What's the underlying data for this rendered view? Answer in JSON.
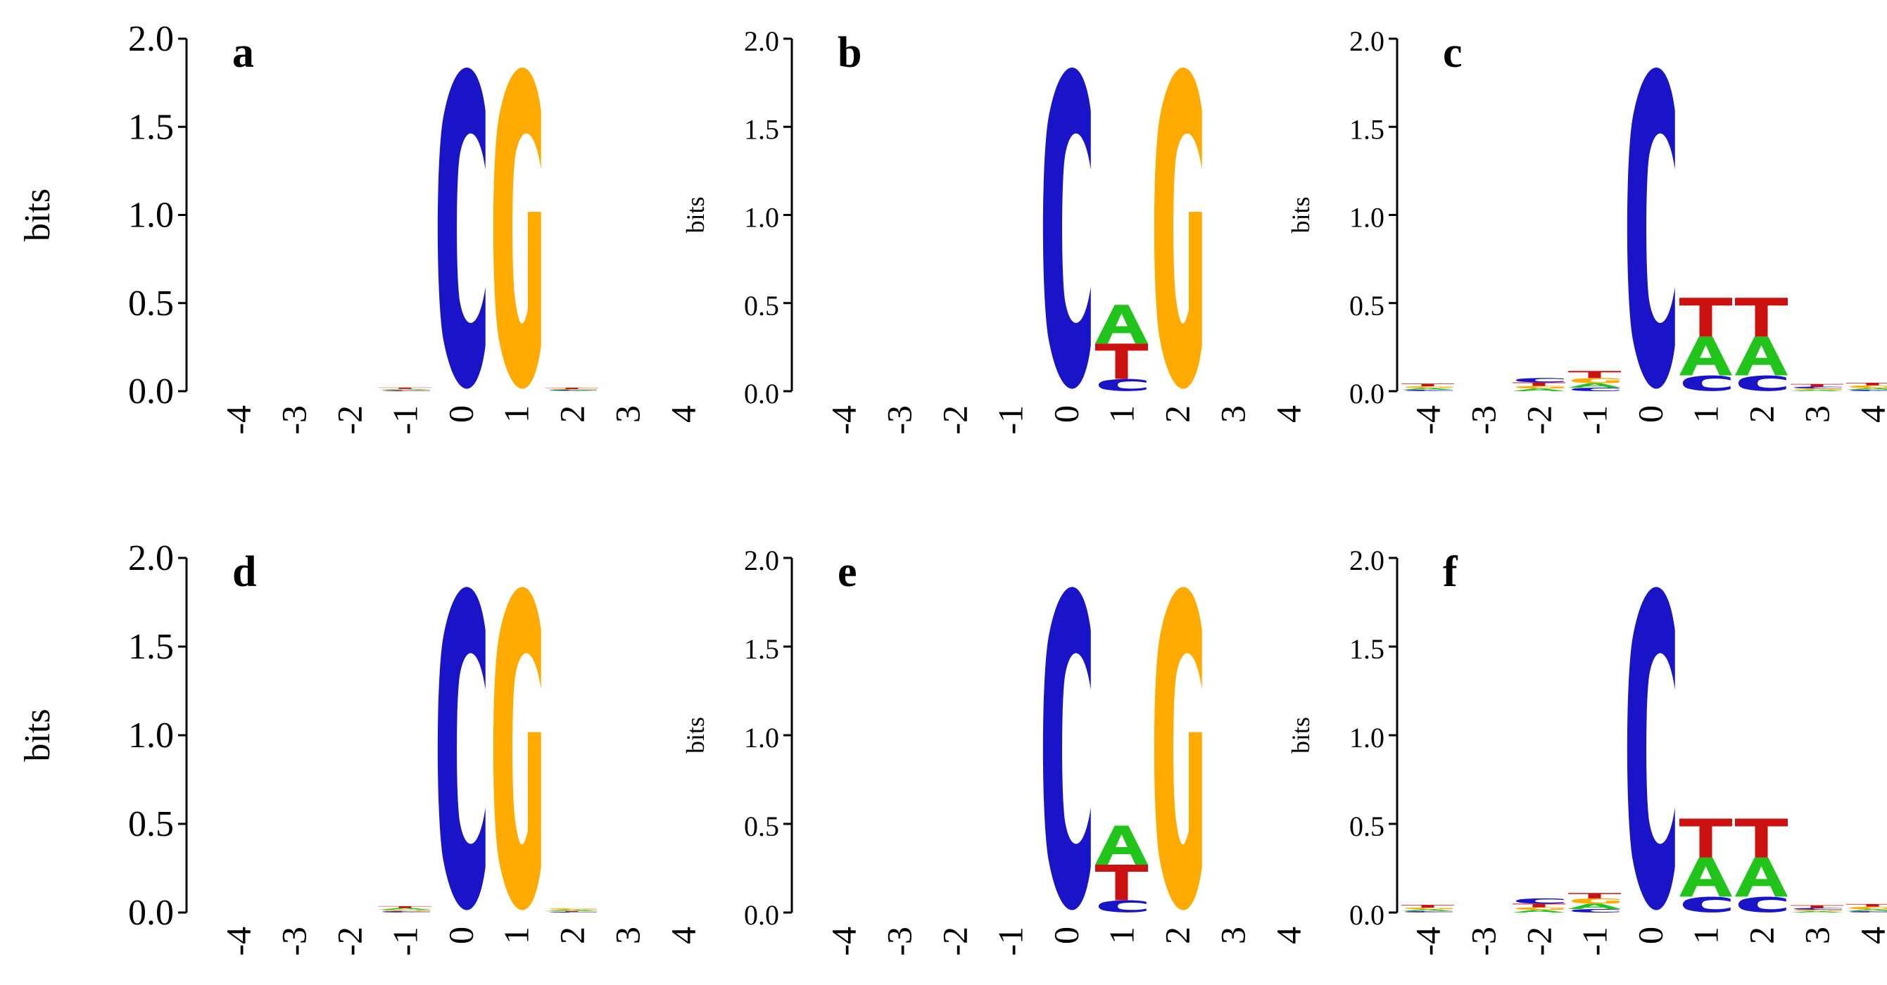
{
  "figure_title": "",
  "colors": {
    "A": "#22c41c",
    "C": "#1a14c8",
    "G": "#ffaa00",
    "T": "#cc1111"
  },
  "chart_data": [
    {
      "type": "sequence-logo",
      "panel": "a",
      "ylabel": "bits",
      "ylim": [
        0,
        2.0
      ],
      "yticks": [
        "0.0",
        "0.5",
        "1.0",
        "1.5",
        "2.0"
      ],
      "positions": [
        "-4",
        "-3",
        "-2",
        "-1",
        "0",
        "1",
        "2",
        "3",
        "4"
      ],
      "heights": [
        {
          "A": 0,
          "C": 0,
          "G": 0,
          "T": 0
        },
        {
          "A": 0,
          "C": 0,
          "G": 0,
          "T": 0
        },
        {
          "A": 0,
          "C": 0,
          "G": 0,
          "T": 0
        },
        {
          "A": 0.005,
          "C": 0.004,
          "G": 0.004,
          "T": 0.008
        },
        {
          "A": 0,
          "C": 1.85,
          "G": 0,
          "T": 0
        },
        {
          "A": 0,
          "C": 0,
          "G": 1.85,
          "T": 0
        },
        {
          "A": 0.004,
          "C": 0.004,
          "G": 0.004,
          "T": 0.008
        },
        {
          "A": 0,
          "C": 0,
          "G": 0,
          "T": 0
        },
        {
          "A": 0,
          "C": 0,
          "G": 0,
          "T": 0
        }
      ]
    },
    {
      "type": "sequence-logo",
      "panel": "b",
      "ylabel": "bits",
      "ylim": [
        0,
        2.0
      ],
      "yticks": [
        "0.0",
        "0.5",
        "1.0",
        "1.5",
        "2.0"
      ],
      "positions": [
        "-4",
        "-3",
        "-2",
        "-1",
        "0",
        "1",
        "2",
        "3",
        "4"
      ],
      "heights": [
        {
          "A": 0,
          "C": 0,
          "G": 0,
          "T": 0
        },
        {
          "A": 0,
          "C": 0,
          "G": 0,
          "T": 0
        },
        {
          "A": 0,
          "C": 0,
          "G": 0,
          "T": 0
        },
        {
          "A": 0,
          "C": 0,
          "G": 0,
          "T": 0
        },
        {
          "A": 0,
          "C": 1.85,
          "G": 0,
          "T": 0
        },
        {
          "A": 0.22,
          "C": 0.07,
          "G": 0,
          "T": 0.2
        },
        {
          "A": 0,
          "C": 0,
          "G": 1.85,
          "T": 0
        },
        {
          "A": 0,
          "C": 0,
          "G": 0,
          "T": 0
        },
        {
          "A": 0,
          "C": 0,
          "G": 0,
          "T": 0
        }
      ]
    },
    {
      "type": "sequence-logo",
      "panel": "c",
      "ylabel": "bits",
      "ylim": [
        0,
        2.0
      ],
      "yticks": [
        "0.0",
        "0.5",
        "1.0",
        "1.5",
        "2.0"
      ],
      "positions": [
        "-4",
        "-3",
        "-2",
        "-1",
        "0",
        "1",
        "2",
        "3",
        "4"
      ],
      "heights": [
        {
          "A": 0.01,
          "C": 0.008,
          "G": 0.01,
          "T": 0.015
        },
        {
          "A": 0,
          "C": 0,
          "G": 0,
          "T": 0
        },
        {
          "A": 0.015,
          "C": 0.025,
          "G": 0.015,
          "T": 0.02
        },
        {
          "A": 0.025,
          "C": 0.02,
          "G": 0.03,
          "T": 0.04
        },
        {
          "A": 0,
          "C": 1.85,
          "G": 0,
          "T": 0
        },
        {
          "A": 0.22,
          "C": 0.09,
          "G": 0,
          "T": 0.22
        },
        {
          "A": 0.22,
          "C": 0.09,
          "G": 0,
          "T": 0.22
        },
        {
          "A": 0.008,
          "C": 0.01,
          "G": 0.008,
          "T": 0.015
        },
        {
          "A": 0.01,
          "C": 0.008,
          "G": 0.015,
          "T": 0.015
        }
      ]
    },
    {
      "type": "sequence-logo",
      "panel": "d",
      "ylabel": "bits",
      "ylim": [
        0,
        2.0
      ],
      "yticks": [
        "0.0",
        "0.5",
        "1.0",
        "1.5",
        "2.0"
      ],
      "positions": [
        "-4",
        "-3",
        "-2",
        "-1",
        "0",
        "1",
        "2",
        "3",
        "4"
      ],
      "heights": [
        {
          "A": 0,
          "C": 0,
          "G": 0,
          "T": 0
        },
        {
          "A": 0,
          "C": 0,
          "G": 0,
          "T": 0
        },
        {
          "A": 0,
          "C": 0,
          "G": 0,
          "T": 0
        },
        {
          "A": 0.01,
          "C": 0.008,
          "G": 0.008,
          "T": 0.01
        },
        {
          "A": 0,
          "C": 1.85,
          "G": 0,
          "T": 0
        },
        {
          "A": 0,
          "C": 0,
          "G": 1.85,
          "T": 0
        },
        {
          "A": 0.008,
          "C": 0.004,
          "G": 0.008,
          "T": 0.004
        },
        {
          "A": 0,
          "C": 0,
          "G": 0,
          "T": 0
        },
        {
          "A": 0,
          "C": 0,
          "G": 0,
          "T": 0
        }
      ]
    },
    {
      "type": "sequence-logo",
      "panel": "e",
      "ylabel": "bits",
      "ylim": [
        0,
        2.0
      ],
      "yticks": [
        "0.0",
        "0.5",
        "1.0",
        "1.5",
        "2.0"
      ],
      "positions": [
        "-4",
        "-3",
        "-2",
        "-1",
        "0",
        "1",
        "2",
        "3",
        "4"
      ],
      "heights": [
        {
          "A": 0,
          "C": 0,
          "G": 0,
          "T": 0
        },
        {
          "A": 0,
          "C": 0,
          "G": 0,
          "T": 0
        },
        {
          "A": 0,
          "C": 0,
          "G": 0,
          "T": 0
        },
        {
          "A": 0,
          "C": 0,
          "G": 0,
          "T": 0
        },
        {
          "A": 0,
          "C": 1.85,
          "G": 0,
          "T": 0
        },
        {
          "A": 0.22,
          "C": 0.07,
          "G": 0,
          "T": 0.2
        },
        {
          "A": 0,
          "C": 0,
          "G": 1.85,
          "T": 0
        },
        {
          "A": 0,
          "C": 0,
          "G": 0,
          "T": 0
        },
        {
          "A": 0,
          "C": 0,
          "G": 0,
          "T": 0
        }
      ]
    },
    {
      "type": "sequence-logo",
      "panel": "f",
      "ylabel": "bits",
      "ylim": [
        0,
        2.0
      ],
      "yticks": [
        "0.0",
        "0.5",
        "1.0",
        "1.5",
        "2.0"
      ],
      "positions": [
        "-4",
        "-3",
        "-2",
        "-1",
        "0",
        "1",
        "2",
        "3",
        "4"
      ],
      "heights": [
        {
          "A": 0.01,
          "C": 0.008,
          "G": 0.01,
          "T": 0.015
        },
        {
          "A": 0,
          "C": 0,
          "G": 0,
          "T": 0
        },
        {
          "A": 0.015,
          "C": 0.03,
          "G": 0.015,
          "T": 0.02
        },
        {
          "A": 0.03,
          "C": 0.02,
          "G": 0.03,
          "T": 0.03
        },
        {
          "A": 0,
          "C": 1.85,
          "G": 0,
          "T": 0
        },
        {
          "A": 0.22,
          "C": 0.09,
          "G": 0,
          "T": 0.22
        },
        {
          "A": 0.22,
          "C": 0.09,
          "G": 0,
          "T": 0.22
        },
        {
          "A": 0.008,
          "C": 0.01,
          "G": 0.008,
          "T": 0.015
        },
        {
          "A": 0.01,
          "C": 0.008,
          "G": 0.015,
          "T": 0.015
        }
      ]
    }
  ]
}
